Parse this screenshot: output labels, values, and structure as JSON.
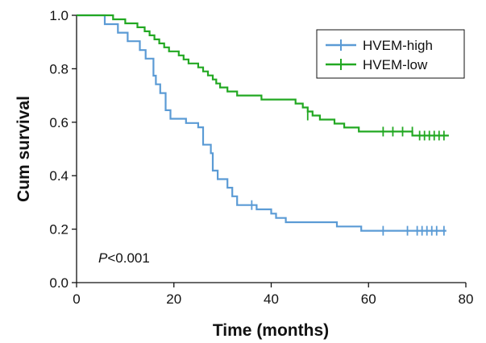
{
  "chart_data": {
    "type": "line",
    "subtype": "kaplan-meier",
    "title": "",
    "xlabel": "Time (months)",
    "ylabel": "Cum survival",
    "xlim": [
      0,
      80
    ],
    "ylim": [
      0,
      1.0
    ],
    "x_ticks": [
      "0",
      "20",
      "40",
      "60",
      "80"
    ],
    "y_ticks": [
      "0.0",
      "0.2",
      "0.4",
      "0.6",
      "0.8",
      "1.0"
    ],
    "grid": false,
    "legend": "top-right",
    "annotation": {
      "italic": "P",
      "rest": "<0.001"
    },
    "series": [
      {
        "name": "HVEM-high",
        "color": "#5b9bd5",
        "steps": [
          [
            0,
            1.0
          ],
          [
            5.8,
            0.967
          ],
          [
            8.5,
            0.935
          ],
          [
            10.5,
            0.903
          ],
          [
            13,
            0.87
          ],
          [
            14.2,
            0.838
          ],
          [
            15.8,
            0.774
          ],
          [
            16.3,
            0.742
          ],
          [
            17.2,
            0.709
          ],
          [
            18.3,
            0.645
          ],
          [
            19.3,
            0.613
          ],
          [
            22.5,
            0.597
          ],
          [
            25,
            0.581
          ],
          [
            26,
            0.516
          ],
          [
            27.6,
            0.484
          ],
          [
            28,
            0.419
          ],
          [
            29,
            0.387
          ],
          [
            31,
            0.355
          ],
          [
            32,
            0.323
          ],
          [
            33,
            0.29
          ],
          [
            37,
            0.274
          ],
          [
            40,
            0.258
          ],
          [
            41,
            0.242
          ],
          [
            43,
            0.226
          ],
          [
            53.5,
            0.21
          ],
          [
            58.5,
            0.194
          ],
          [
            76,
            0.194
          ]
        ],
        "censored": [
          [
            36,
            0.29
          ],
          [
            63,
            0.194
          ],
          [
            68,
            0.194
          ],
          [
            70,
            0.194
          ],
          [
            71,
            0.194
          ],
          [
            72,
            0.194
          ],
          [
            73,
            0.194
          ],
          [
            74,
            0.194
          ],
          [
            75.5,
            0.194
          ]
        ]
      },
      {
        "name": "HVEM-low",
        "color": "#22a822",
        "steps": [
          [
            0,
            1.0
          ],
          [
            7.5,
            0.985
          ],
          [
            10,
            0.97
          ],
          [
            12.5,
            0.955
          ],
          [
            14,
            0.94
          ],
          [
            15,
            0.925
          ],
          [
            16,
            0.91
          ],
          [
            17,
            0.895
          ],
          [
            18,
            0.88
          ],
          [
            19,
            0.865
          ],
          [
            21,
            0.85
          ],
          [
            22,
            0.835
          ],
          [
            23,
            0.82
          ],
          [
            25,
            0.805
          ],
          [
            26,
            0.79
          ],
          [
            27,
            0.775
          ],
          [
            28,
            0.76
          ],
          [
            28.7,
            0.745
          ],
          [
            29.5,
            0.73
          ],
          [
            31,
            0.715
          ],
          [
            33,
            0.7
          ],
          [
            38,
            0.685
          ],
          [
            45,
            0.67
          ],
          [
            46.5,
            0.655
          ],
          [
            47.5,
            0.64
          ],
          [
            48.5,
            0.625
          ],
          [
            50,
            0.61
          ],
          [
            53,
            0.595
          ],
          [
            55,
            0.58
          ],
          [
            58,
            0.565
          ],
          [
            69,
            0.55
          ],
          [
            76.5,
            0.55
          ]
        ],
        "censored": [
          [
            47.5,
            0.625
          ],
          [
            63,
            0.565
          ],
          [
            65,
            0.565
          ],
          [
            67,
            0.565
          ],
          [
            69,
            0.565
          ],
          [
            70.5,
            0.55
          ],
          [
            71.5,
            0.55
          ],
          [
            72.5,
            0.55
          ],
          [
            73.5,
            0.55
          ],
          [
            74.5,
            0.55
          ],
          [
            75.5,
            0.55
          ]
        ]
      }
    ]
  }
}
